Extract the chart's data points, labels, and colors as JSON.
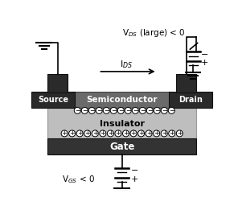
{
  "bg_color": "#ffffff",
  "semiconductor_color": "#6a6a6a",
  "source_drain_color": "#2a2a2a",
  "gate_color": "#333333",
  "insulator_color": "#bebebe",
  "text_white": "#ffffff",
  "text_black": "#000000",
  "title_vds": "V$_{DS}$ (large) < 0",
  "title_vgs": "V$_{GS}$ < 0",
  "label_source": "Source",
  "label_drain": "Drain",
  "label_semiconductor": "Semiconductor",
  "label_insulator": "Insulator",
  "label_gate": "Gate",
  "label_ids": "I$_{DS}$"
}
